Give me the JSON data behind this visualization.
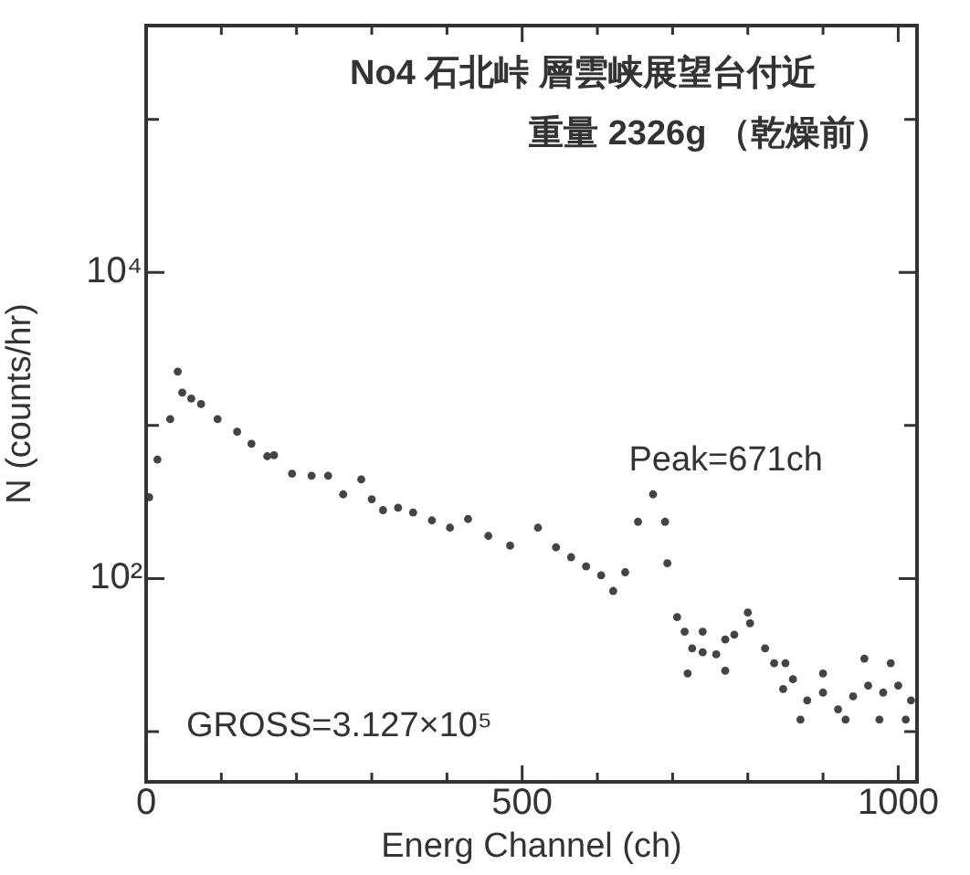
{
  "chart_data": {
    "type": "scatter",
    "title": "No4 石北峠 層雲峡展望台付近",
    "subtitle": "重量 2326g （乾燥前）",
    "xlabel": "Energ Channel (ch)",
    "ylabel": "N (counts/hr)",
    "log": "y",
    "grid": false,
    "legend": false,
    "marker": "circle",
    "xlim": [
      0,
      1025
    ],
    "ylim": [
      4.7,
      410000
    ],
    "xticks": [
      0,
      {
        "value": 100,
        "label": null
      },
      {
        "value": 200,
        "label": null
      },
      {
        "value": 300,
        "label": null
      },
      {
        "value": 400,
        "label": null
      },
      500,
      {
        "value": 600,
        "label": null
      },
      {
        "value": 700,
        "label": null
      },
      {
        "value": 800,
        "label": null
      },
      {
        "value": 900,
        "label": null
      },
      1000
    ],
    "yticks": [
      {
        "value": 10,
        "label": null
      },
      {
        "value": 100,
        "label": "10²"
      },
      {
        "value": 1000,
        "label": null
      },
      {
        "value": 10000,
        "label": "10⁴"
      },
      {
        "value": 100000,
        "label": null
      }
    ],
    "annotations": [
      {
        "text": "Peak=671ch",
        "x": 671,
        "y": 355
      },
      "GROSS=3.127×10⁵"
    ],
    "series": [
      {
        "color": "#444444",
        "x": [
          4,
          15,
          32,
          42,
          48,
          60,
          73,
          95,
          121,
          140,
          161,
          170,
          194,
          220,
          242,
          262,
          286,
          300,
          315,
          335,
          355,
          380,
          404,
          428,
          455,
          484,
          521,
          545,
          565,
          585,
          605,
          621,
          637,
          654,
          674,
          690,
          693,
          706,
          716,
          726,
          740,
          758,
          770,
          782,
          803,
          823,
          835,
          847,
          860,
          879,
          900,
          920,
          940,
          960,
          980,
          1000,
          1017,
          720,
          740,
          770,
          800,
          850,
          870,
          900,
          930,
          955,
          975,
          990,
          1010
        ],
        "values": [
          340,
          600,
          1100,
          2250,
          1640,
          1500,
          1380,
          1100,
          910,
          760,
          630,
          640,
          485,
          470,
          470,
          355,
          445,
          330,
          280,
          290,
          270,
          240,
          215,
          245,
          190,
          164,
          215,
          160,
          138,
          120,
          105,
          83,
          110,
          235,
          355,
          235,
          126,
          56,
          45,
          35,
          33,
          32,
          40,
          43,
          51,
          35,
          28,
          19,
          22,
          16,
          18,
          14,
          17,
          20,
          18,
          20,
          16,
          24,
          45,
          25,
          60,
          28,
          12,
          24,
          12,
          30,
          12,
          28,
          12
        ]
      }
    ]
  }
}
